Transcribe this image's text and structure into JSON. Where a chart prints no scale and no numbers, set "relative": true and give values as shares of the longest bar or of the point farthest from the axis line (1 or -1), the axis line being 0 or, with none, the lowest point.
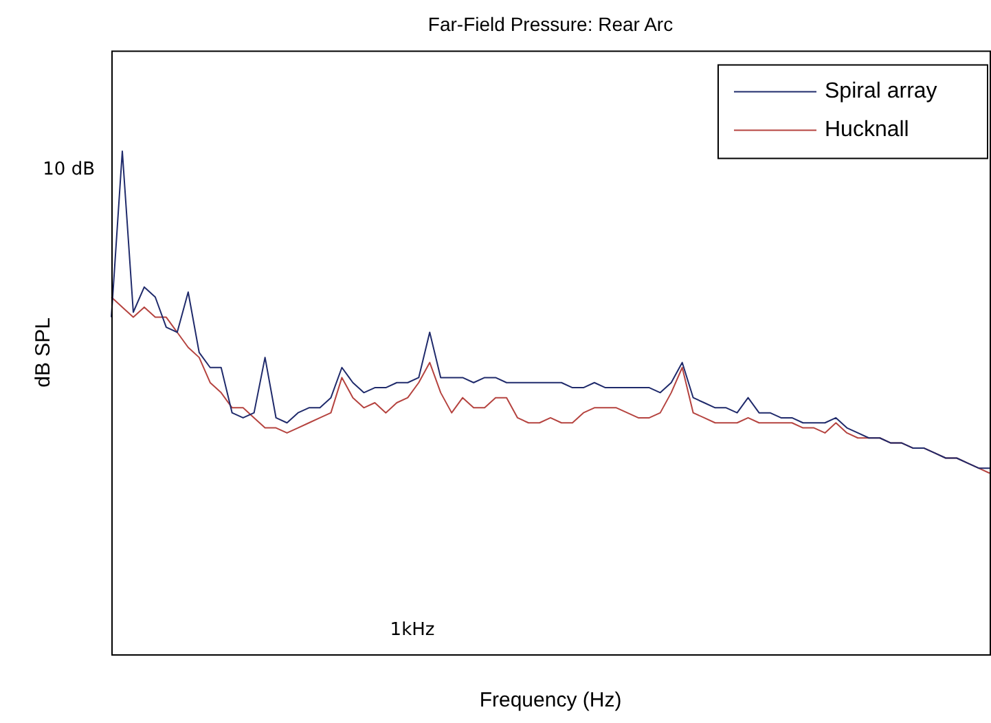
{
  "chart_data": {
    "type": "line",
    "title": "Far-Field Pressure: Rear Arc",
    "xlabel": "Frequency (Hz)",
    "ylabel": "dB SPL",
    "relative": true,
    "legend": "top right",
    "marker": "none",
    "line_style": "solid",
    "annotations": [
      "10 dB",
      "1kHz"
    ],
    "categories": [
      null,
      null,
      null,
      null,
      null,
      null,
      null,
      null,
      null,
      null,
      null,
      null,
      null,
      null,
      null,
      null,
      null,
      null,
      null,
      null,
      null,
      null,
      null,
      null,
      null,
      null,
      null,
      null,
      null,
      null,
      null,
      null,
      null,
      null,
      null,
      null,
      null,
      null,
      null,
      null,
      null,
      null,
      null,
      null,
      null,
      null,
      null,
      null,
      null,
      null,
      null,
      null,
      null,
      null,
      null,
      null,
      null,
      null,
      null,
      null,
      null,
      null,
      null,
      null,
      null,
      null,
      null,
      null,
      null,
      null,
      null,
      null,
      null,
      null,
      null,
      null,
      null,
      null,
      null,
      null,
      null
    ],
    "series": [
      {
        "name": "Spiral array",
        "color": "#1f2a6b",
        "values": [
          0.67,
          1.0,
          0.68,
          0.73,
          0.71,
          0.65,
          0.64,
          0.72,
          0.6,
          0.57,
          0.57,
          0.48,
          0.47,
          0.48,
          0.59,
          0.47,
          0.46,
          0.48,
          0.49,
          0.49,
          0.51,
          0.57,
          0.54,
          0.52,
          0.53,
          0.53,
          0.54,
          0.54,
          0.55,
          0.64,
          0.55,
          0.55,
          0.55,
          0.54,
          0.55,
          0.55,
          0.54,
          0.54,
          0.54,
          0.54,
          0.54,
          0.54,
          0.53,
          0.53,
          0.54,
          0.53,
          0.53,
          0.53,
          0.53,
          0.53,
          0.52,
          0.54,
          0.58,
          0.51,
          0.5,
          0.49,
          0.49,
          0.48,
          0.51,
          0.48,
          0.48,
          0.47,
          0.47,
          0.46,
          0.46,
          0.46,
          0.47,
          0.45,
          0.44,
          0.43,
          0.43,
          0.42,
          0.42,
          0.41,
          0.41,
          0.4,
          0.39,
          0.39,
          0.38,
          0.37,
          0.37
        ]
      },
      {
        "name": "Hucknall",
        "color": "#b5433f",
        "values": [
          0.71,
          0.69,
          0.67,
          0.69,
          0.67,
          0.67,
          0.64,
          0.61,
          0.59,
          0.54,
          0.52,
          0.49,
          0.49,
          0.47,
          0.45,
          0.45,
          0.44,
          0.45,
          0.46,
          0.47,
          0.48,
          0.55,
          0.51,
          0.49,
          0.5,
          0.48,
          0.5,
          0.51,
          0.54,
          0.58,
          0.52,
          0.48,
          0.51,
          0.49,
          0.49,
          0.51,
          0.51,
          0.47,
          0.46,
          0.46,
          0.47,
          0.46,
          0.46,
          0.48,
          0.49,
          0.49,
          0.49,
          0.48,
          0.47,
          0.47,
          0.48,
          0.52,
          0.57,
          0.48,
          0.47,
          0.46,
          0.46,
          0.46,
          0.47,
          0.46,
          0.46,
          0.46,
          0.46,
          0.45,
          0.45,
          0.44,
          0.46,
          0.44,
          0.43,
          0.43,
          0.43,
          0.42,
          0.42,
          0.41,
          0.41,
          0.4,
          0.39,
          0.39,
          0.38,
          0.37,
          0.36
        ]
      }
    ]
  }
}
